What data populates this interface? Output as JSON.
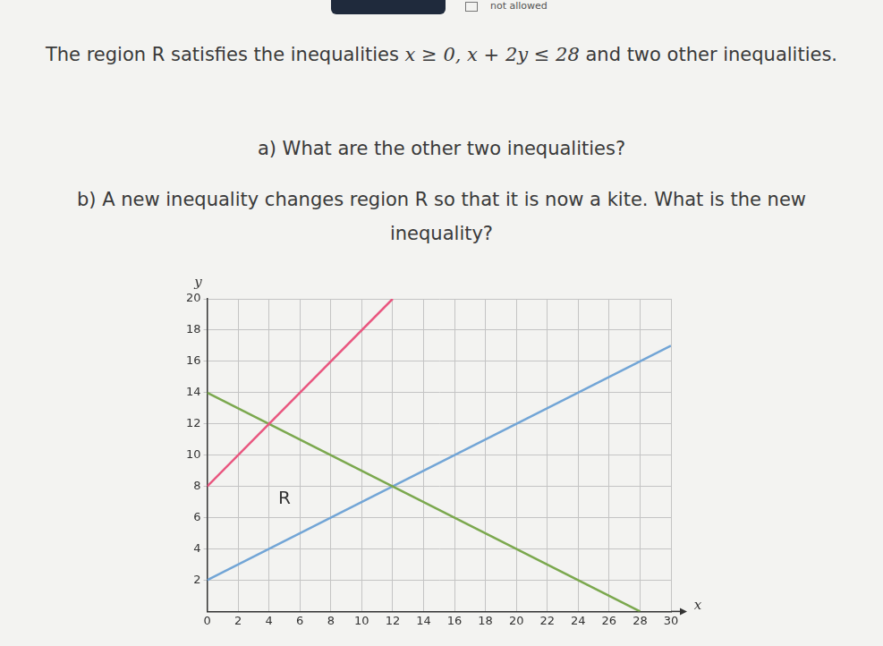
{
  "header": {
    "calculator": "not allowed"
  },
  "question": {
    "intro_start": "The region R satisfies the inequalities ",
    "intro_math": "x ≥ 0, x + 2y ≤ 28",
    "intro_end": " and two other inequalities.",
    "part_a": "a) What are the other two inequalities?",
    "part_b": "b) A new inequality changes region R so that it is now a kite. What is the new inequality?"
  },
  "chart_data": {
    "type": "line",
    "x_label": "x",
    "y_label": "y",
    "xlim": [
      0,
      30
    ],
    "ylim": [
      0,
      20
    ],
    "xticks": [
      0,
      2,
      4,
      6,
      8,
      10,
      12,
      14,
      16,
      18,
      20,
      22,
      24,
      26,
      28,
      30
    ],
    "yticks": [
      2,
      4,
      6,
      8,
      10,
      12,
      14,
      16,
      18,
      20
    ],
    "grid": true,
    "series": [
      {
        "color": "#e9567f",
        "x": [
          0,
          12
        ],
        "values": [
          8,
          20
        ]
      },
      {
        "color": "#7ba84e",
        "x": [
          0,
          28
        ],
        "values": [
          14,
          0
        ]
      },
      {
        "color": "#72a5d6",
        "x": [
          0,
          30
        ],
        "values": [
          2,
          17
        ]
      }
    ],
    "annotations": [
      {
        "text": "R",
        "x": 5,
        "y": 7.2
      }
    ]
  }
}
